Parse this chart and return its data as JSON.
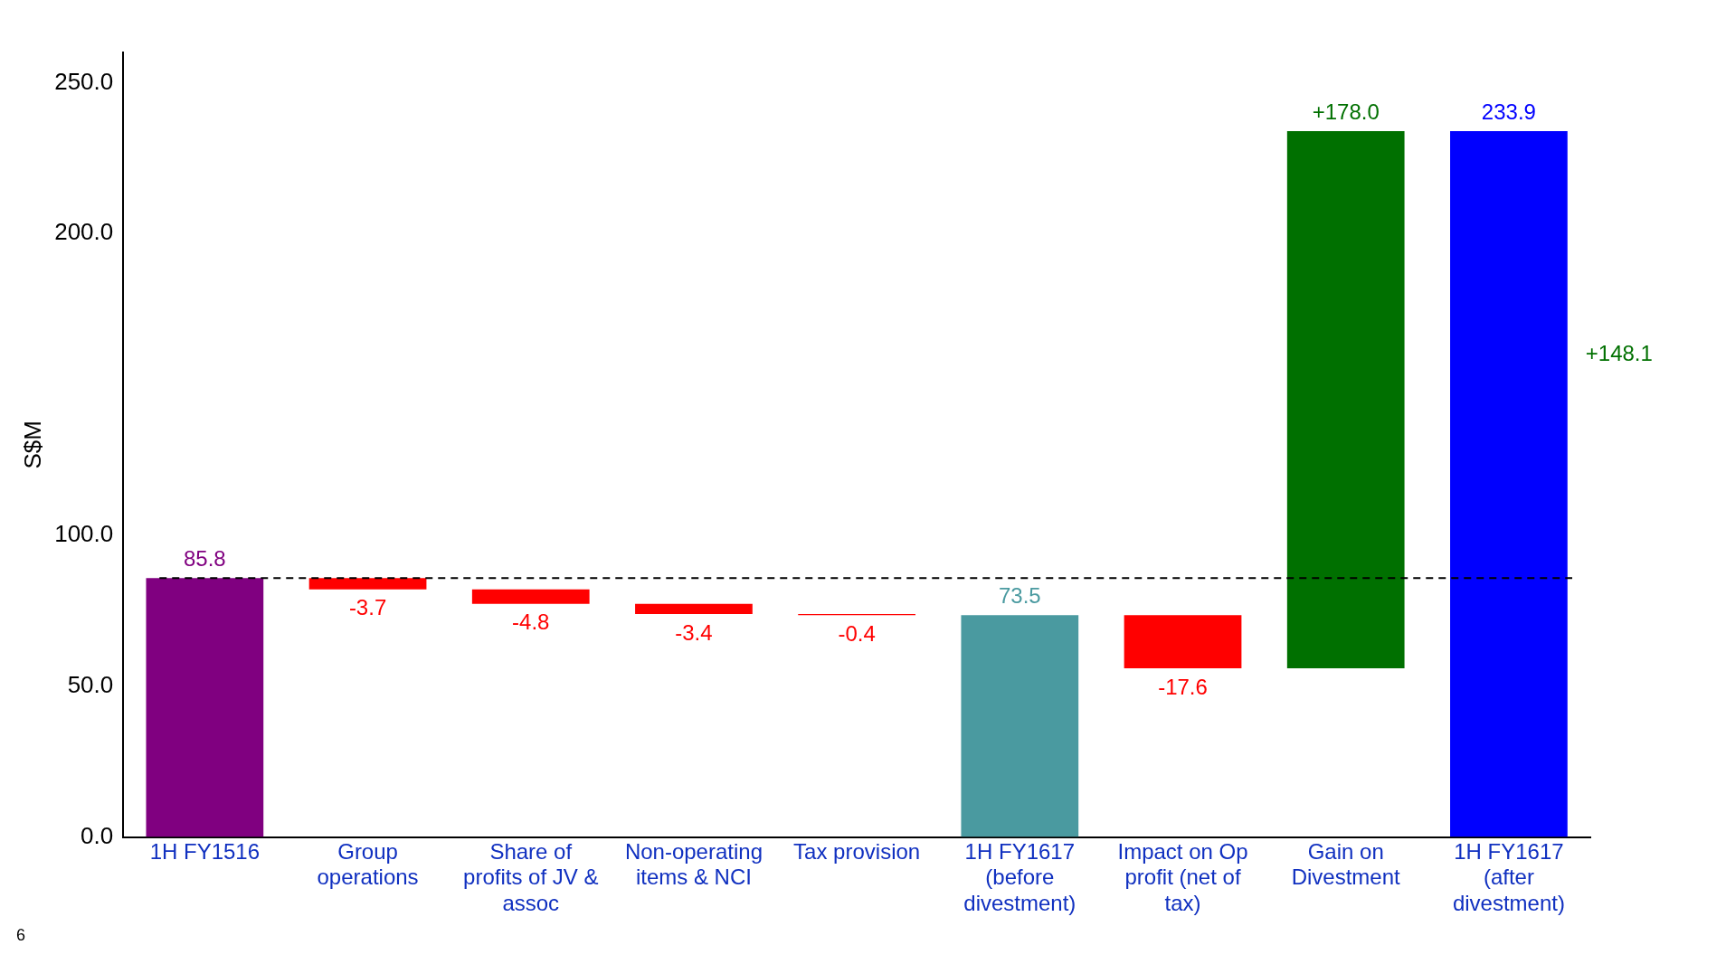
{
  "chart_data": {
    "type": "bar",
    "ylabel": "S$M",
    "categories": [
      "1H FY1516",
      "Group operations",
      "Share of profits of JV & assoc",
      "Non-operating items & NCI",
      "Tax provision",
      "1H FY1617 (before divestment)",
      "Impact on Op profit (net of tax)",
      "Gain on Divestment",
      "1H FY1617 (after divestment)"
    ],
    "values": [
      85.8,
      -3.7,
      -4.8,
      -3.4,
      -0.4,
      73.5,
      -17.6,
      178.0,
      233.9
    ],
    "base": [
      0,
      85.8,
      82.1,
      77.3,
      73.9,
      0,
      73.5,
      55.9,
      0
    ],
    "colors": [
      "#800080",
      "#ff0000",
      "#ff0000",
      "#ff0000",
      "#ff0000",
      "#4a9aa0",
      "#ff0000",
      "#007000",
      "#0000ff"
    ],
    "value_labels": [
      "85.8",
      "-3.7",
      "-4.8",
      "-3.4",
      "-0.4",
      "73.5",
      "-17.6",
      "+178.0",
      "233.9"
    ],
    "ylim": [
      0,
      260
    ],
    "yticks": [
      {
        "value": 0,
        "label": "0.0"
      },
      {
        "value": 50,
        "label": "50.0"
      },
      {
        "value": 100,
        "label": "100.0"
      },
      {
        "value": 200,
        "label": "200.0"
      },
      {
        "value": 250,
        "label": "250.0"
      }
    ],
    "ref_lines": [
      {
        "axis": "y",
        "value": 85.8,
        "label": null,
        "color": "#000000",
        "line_style": "dashed"
      }
    ],
    "annotations": [
      "+148.1",
      "6"
    ],
    "grid": false,
    "legend": false
  }
}
